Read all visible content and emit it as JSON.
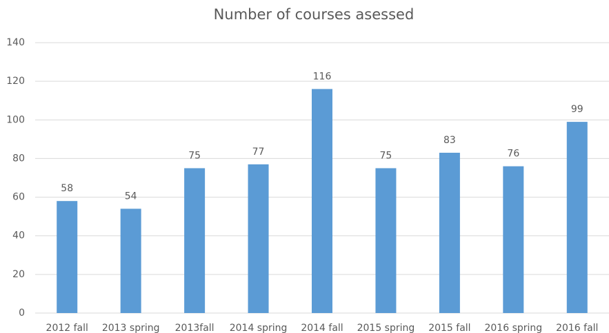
{
  "chart_data": {
    "type": "bar",
    "title": "Number of courses asessed",
    "categories": [
      "2012 fall",
      "2013 spring",
      "2013fall",
      "2014 spring",
      "2014 fall",
      "2015 spring",
      "2015 fall",
      "2016 spring",
      "2016 fall"
    ],
    "values": [
      58,
      54,
      75,
      77,
      116,
      75,
      83,
      76,
      99
    ],
    "color": "#5b9bd5",
    "ylim": [
      0,
      140
    ],
    "yticks": [
      0,
      20,
      40,
      60,
      80,
      100,
      120,
      140
    ],
    "grid": true
  }
}
